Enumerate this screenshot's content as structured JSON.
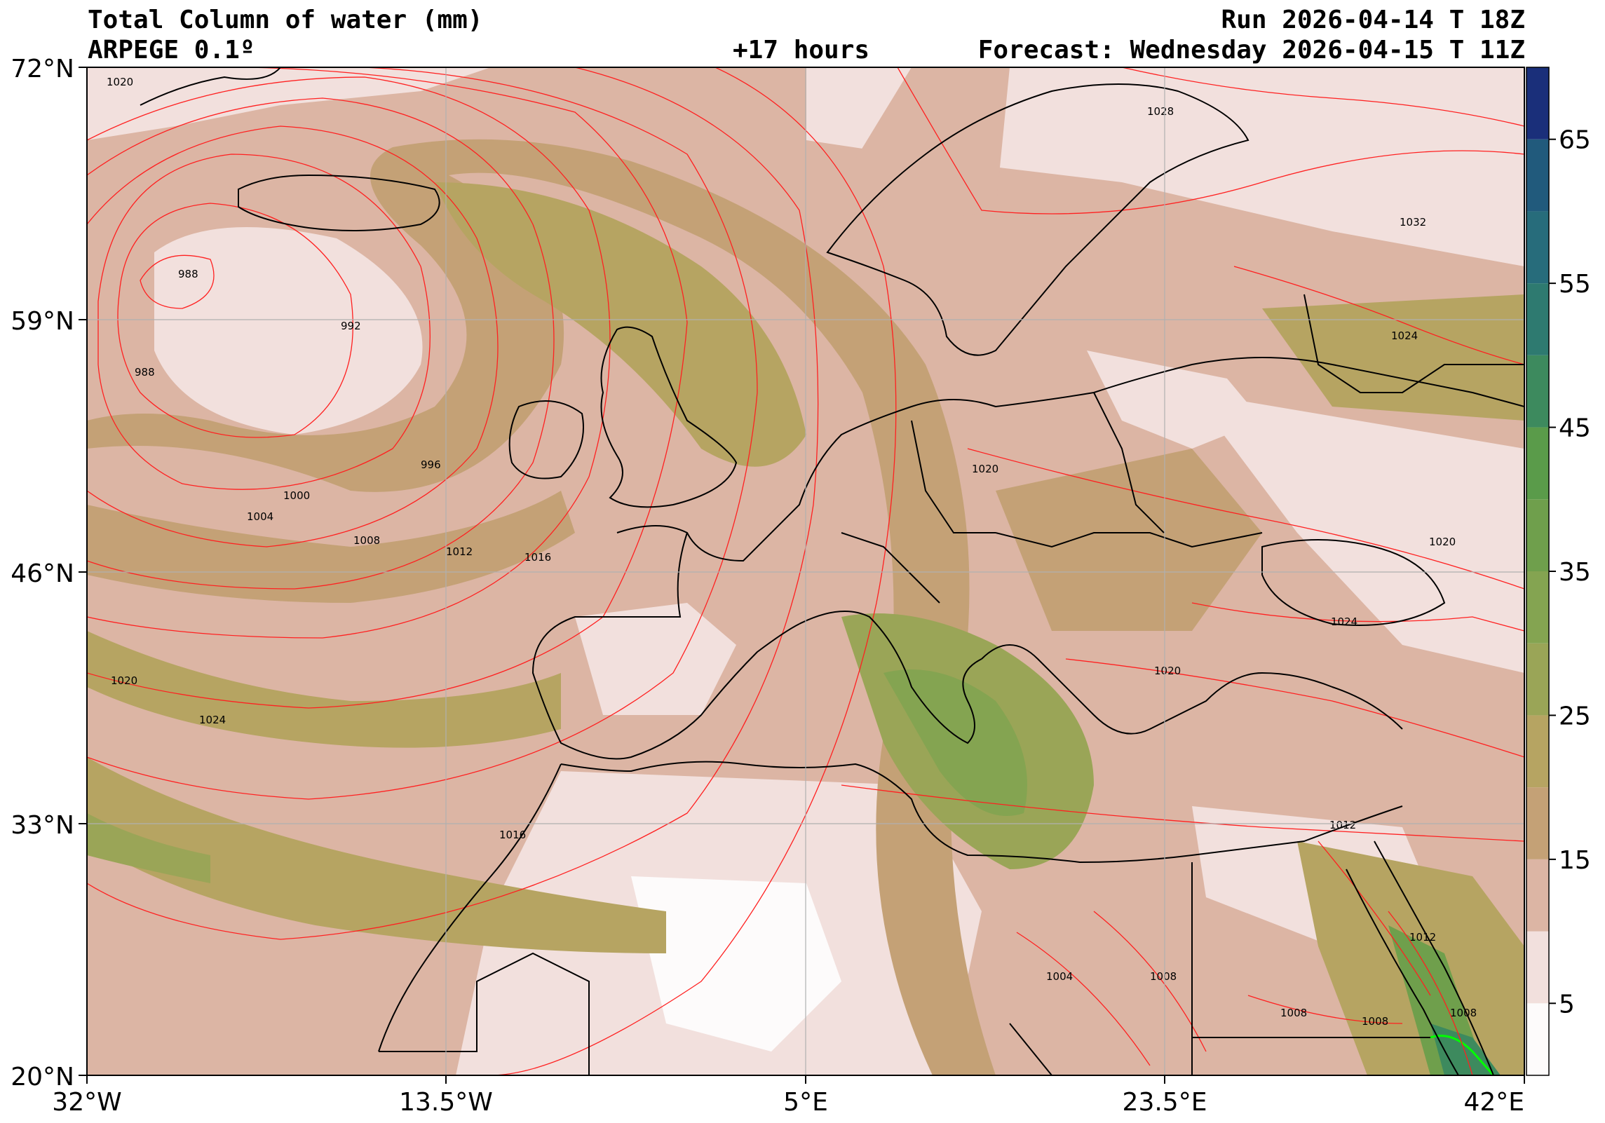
{
  "header": {
    "title": "Total Column of water (mm)",
    "model": "ARPEGE 0.1º",
    "run": "Run 2026-04-14 T 18Z",
    "lead": "+17 hours",
    "forecast": "Forecast: Wednesday 2026-04-15 T 11Z"
  },
  "axes": {
    "lat_labels": [
      "72°N",
      "59°N",
      "46°N",
      "33°N",
      "20°N"
    ],
    "lon_labels": [
      "32°W",
      "13.5°W",
      "5°E",
      "23.5°E",
      "42°E"
    ],
    "lat_values": [
      72,
      59,
      46,
      33,
      20
    ],
    "lon_values": [
      -32,
      -13.5,
      5,
      23.5,
      42
    ],
    "grid": true
  },
  "colorbar": {
    "tick_labels": [
      "5",
      "15",
      "25",
      "35",
      "45",
      "55",
      "65"
    ],
    "tick_values": [
      5,
      15,
      25,
      35,
      45,
      55,
      65
    ],
    "levels": [
      0,
      5,
      10,
      15,
      20,
      25,
      30,
      35,
      40,
      45,
      50,
      55,
      60,
      65,
      70
    ],
    "colors": [
      "#fdfbfb",
      "#f2e0dd",
      "#dcb5a4",
      "#c4a176",
      "#b6a462",
      "#9aa557",
      "#84a451",
      "#6f9f4c",
      "#5a9b4a",
      "#3d8a5e",
      "#2e7a70",
      "#276c7b",
      "#215a7c",
      "#1a2f7a",
      "#000000"
    ]
  },
  "isobars": {
    "color": "#ff2020",
    "labels": [
      "1020",
      "1028",
      "1032",
      "988",
      "992",
      "988",
      "1024",
      "996",
      "1000",
      "1004",
      "1008",
      "1012",
      "1016",
      "1020",
      "1020",
      "1024",
      "1020",
      "1024",
      "1020",
      "1012",
      "1016",
      "1004",
      "1008",
      "1012",
      "1008",
      "1008",
      "1008"
    ]
  },
  "colors": {
    "coast": "#000000",
    "land_water_high": "#00ff00"
  }
}
